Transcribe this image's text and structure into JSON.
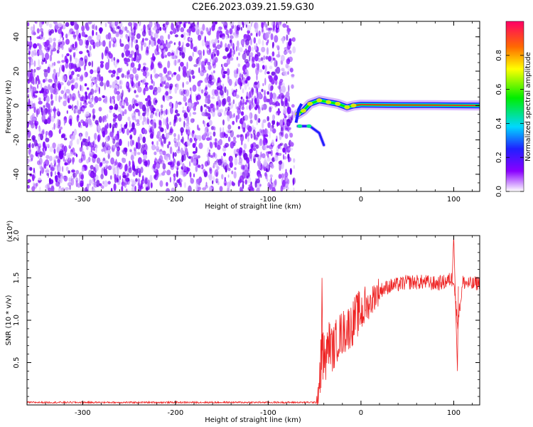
{
  "figure": {
    "title": "C2E6.2023.039.21.59.G30"
  },
  "chart_data": [
    {
      "type": "heatmap",
      "xlabel": "Height of straight line (km)",
      "ylabel": "Frequency (Hz)",
      "xlim": [
        -360,
        128
      ],
      "ylim": [
        -50,
        49
      ],
      "xticks": [
        -300,
        -200,
        -100,
        0,
        100
      ],
      "yticks": [
        -40,
        -20,
        0,
        20,
        40
      ],
      "colorbar": {
        "label": "Normalized spectral amplitude",
        "ticks": [
          "0.0",
          "0.2",
          "0.4",
          "0.6",
          "0.8"
        ],
        "range": [
          0,
          1
        ]
      },
      "features": {
        "noise_region_x": [
          -360,
          -72
        ],
        "signal_track": [
          {
            "x": -68,
            "freq": -5
          },
          {
            "x": -62,
            "freq": -3
          },
          {
            "x": -55,
            "freq": 1
          },
          {
            "x": -45,
            "freq": 3
          },
          {
            "x": -35,
            "freq": 2
          },
          {
            "x": -25,
            "freq": 1
          },
          {
            "x": -15,
            "freq": -1
          },
          {
            "x": -8,
            "freq": 0
          },
          {
            "x": 0,
            "freq": 0.5
          },
          {
            "x": 40,
            "freq": 0.3
          },
          {
            "x": 80,
            "freq": 0.2
          },
          {
            "x": 128,
            "freq": 0
          }
        ],
        "lower_branch": [
          {
            "x": -68,
            "freq": -12
          },
          {
            "x": -55,
            "freq": -12
          },
          {
            "x": -45,
            "freq": -16
          },
          {
            "x": -40,
            "freq": -23
          }
        ]
      }
    },
    {
      "type": "line",
      "xlabel": "Height of straight line (km)",
      "ylabel": "SNR (10 * v/v)",
      "yexponent": "(x10⁴)",
      "xlim": [
        -360,
        128
      ],
      "ylim": [
        0,
        2.0
      ],
      "xticks": [
        -300,
        -200,
        -100,
        0,
        100
      ],
      "yticks": [
        "0.5",
        "1.0",
        "1.5",
        "2.0"
      ],
      "series": [
        {
          "color": "#ee2222",
          "x": [
            -360,
            -300,
            -200,
            -100,
            -48,
            -45,
            -42,
            -38,
            -35,
            -30,
            -25,
            -20,
            -15,
            -10,
            -5,
            0,
            5,
            10,
            15,
            20,
            30,
            40,
            50,
            60,
            70,
            80,
            90,
            100,
            104,
            110,
            120,
            128
          ],
          "y": [
            0.02,
            0.02,
            0.02,
            0.02,
            0.02,
            0.25,
            0.7,
            0.5,
            0.75,
            0.65,
            0.8,
            0.85,
            0.9,
            0.95,
            1.05,
            1.1,
            1.15,
            1.2,
            1.3,
            1.35,
            1.4,
            1.42,
            1.45,
            1.45,
            1.45,
            1.43,
            1.45,
            1.5,
            0.95,
            1.45,
            1.42,
            1.45
          ]
        }
      ]
    }
  ]
}
